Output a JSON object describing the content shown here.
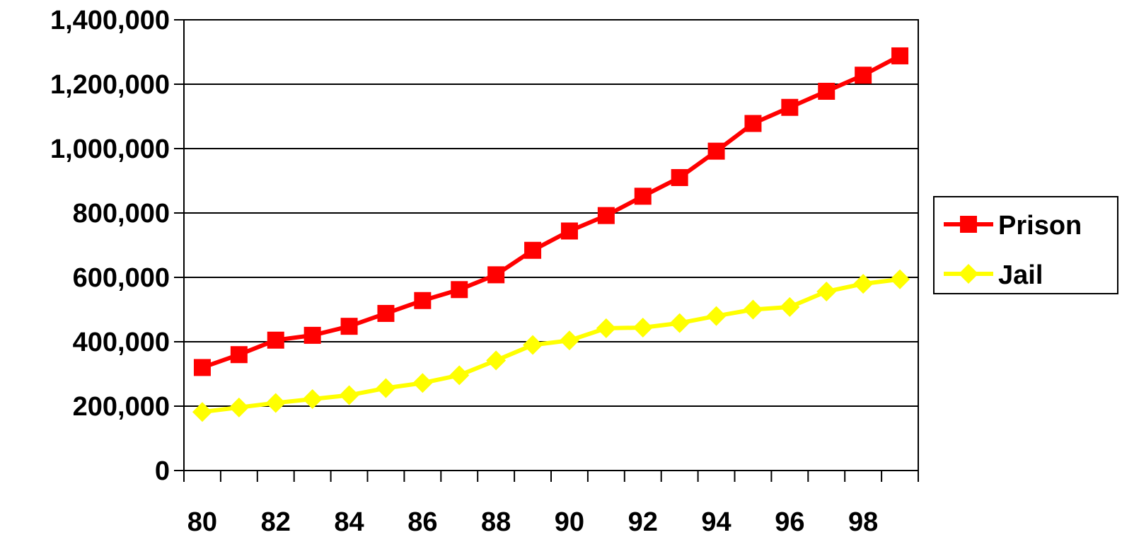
{
  "chart_data": {
    "type": "line",
    "title": "",
    "xlabel": "",
    "ylabel": "",
    "x": [
      80,
      81,
      82,
      83,
      84,
      85,
      86,
      87,
      88,
      89,
      90,
      91,
      92,
      93,
      94,
      95,
      96,
      97,
      98,
      99
    ],
    "x_tick_labels": [
      "80",
      "82",
      "84",
      "86",
      "88",
      "90",
      "92",
      "94",
      "96",
      "98"
    ],
    "y_tick_labels": [
      "0",
      "200,000",
      "400,000",
      "600,000",
      "800,000",
      "1,000,000",
      "1,200,000",
      "1,400,000"
    ],
    "ylim": [
      0,
      1400000
    ],
    "grid": "horizontal",
    "legend_position": "right",
    "series": [
      {
        "name": "Prison",
        "color": "#ff0000",
        "marker": "square",
        "values": [
          320000,
          360000,
          405000,
          420000,
          448000,
          488000,
          528000,
          562000,
          608000,
          684000,
          744000,
          792000,
          852000,
          910000,
          992000,
          1078000,
          1128000,
          1178000,
          1228000,
          1288000
        ]
      },
      {
        "name": "Jail",
        "color": "#ffff00",
        "marker": "diamond",
        "values": [
          182000,
          196000,
          210000,
          222000,
          234000,
          256000,
          272000,
          296000,
          342000,
          390000,
          404000,
          442000,
          444000,
          458000,
          480000,
          500000,
          508000,
          556000,
          580000,
          594000
        ]
      }
    ]
  }
}
